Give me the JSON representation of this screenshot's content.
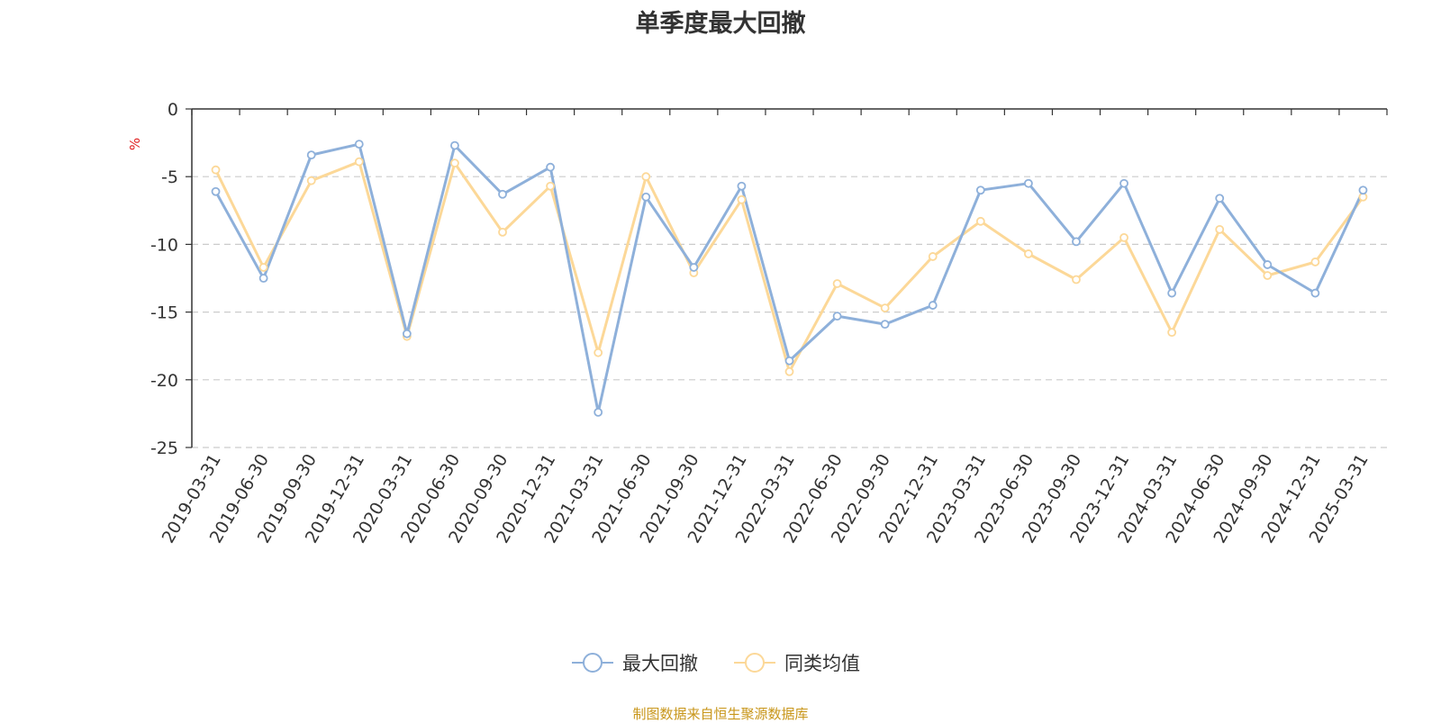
{
  "chart_data": {
    "type": "line",
    "title": "单季度最大回撤",
    "ylabel": "%",
    "xlabel": "",
    "ylim": [
      -25,
      0
    ],
    "yticks": [
      0,
      -5,
      -10,
      -15,
      -20,
      -25
    ],
    "grid": true,
    "legend_position": "bottom",
    "categories": [
      "2019-03-31",
      "2019-06-30",
      "2019-09-30",
      "2019-12-31",
      "2020-03-31",
      "2020-06-30",
      "2020-09-30",
      "2020-12-31",
      "2021-03-31",
      "2021-06-30",
      "2021-09-30",
      "2021-12-31",
      "2022-03-31",
      "2022-06-30",
      "2022-09-30",
      "2022-12-31",
      "2023-03-31",
      "2023-06-30",
      "2023-09-30",
      "2023-12-31",
      "2024-03-31",
      "2024-06-30",
      "2024-09-30",
      "2024-12-31",
      "2025-03-31"
    ],
    "series": [
      {
        "name": "最大回撤",
        "color": "#8eb0da",
        "values": [
          -6.1,
          -12.5,
          -3.4,
          -2.6,
          -16.6,
          -2.7,
          -6.3,
          -4.3,
          -22.4,
          -6.5,
          -11.7,
          -5.7,
          -18.6,
          -15.3,
          -15.9,
          -14.5,
          -6.0,
          -5.5,
          -9.8,
          -5.5,
          -13.6,
          -6.6,
          -11.5,
          -13.6,
          -6.0
        ]
      },
      {
        "name": "同类均值",
        "color": "#fcd898",
        "values": [
          -4.5,
          -11.7,
          -5.3,
          -3.9,
          -16.8,
          -4.0,
          -9.1,
          -5.7,
          -18.0,
          -5.0,
          -12.1,
          -6.7,
          -19.4,
          -12.9,
          -14.7,
          -10.9,
          -8.3,
          -10.7,
          -12.6,
          -9.5,
          -16.5,
          -8.9,
          -12.3,
          -11.3,
          -6.5
        ]
      }
    ]
  },
  "footer": {
    "source": "制图数据来自恒生聚源数据库"
  }
}
